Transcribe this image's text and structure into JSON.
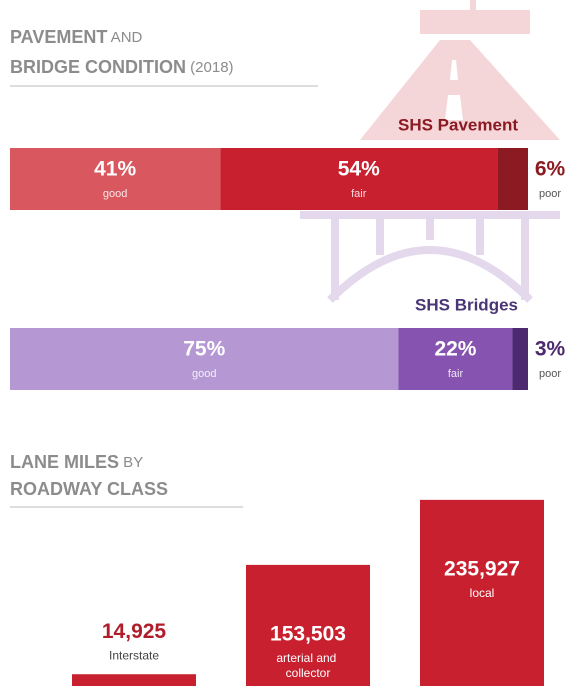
{
  "headings": [
    {
      "lines": [
        [
          "PAVEMENT",
          "AND"
        ],
        [
          "BRIDGE CONDITION",
          "(2018)"
        ]
      ]
    },
    {
      "lines": [
        [
          "LANE MILES",
          "BY"
        ],
        [
          "ROADWAY CLASS"
        ]
      ]
    }
  ],
  "chart_data": [
    {
      "type": "stacked-bar",
      "title": "SHS Pavement",
      "title_color": "#8b1a22",
      "categories": [
        "good",
        "fair",
        "poor"
      ],
      "values": [
        41,
        54,
        6
      ],
      "value_labels": [
        "41%",
        "54%",
        "6%"
      ],
      "colors": [
        "#d9575f",
        "#c8202f",
        "#8b1a22"
      ]
    },
    {
      "type": "stacked-bar",
      "title": "SHS Bridges",
      "title_color": "#4a3575",
      "categories": [
        "good",
        "fair",
        "poor"
      ],
      "values": [
        75,
        22,
        3
      ],
      "value_labels": [
        "75%",
        "22%",
        "3%"
      ],
      "colors": [
        "#b497d3",
        "#8654b0",
        "#4d2a6f"
      ]
    },
    {
      "type": "bar",
      "categories": [
        "Interstate",
        "arterial and collector",
        "local"
      ],
      "values": [
        14925,
        153503,
        235927
      ],
      "value_labels": [
        "14,925",
        "153,503",
        "235,927"
      ],
      "color": "#c8202f"
    }
  ]
}
